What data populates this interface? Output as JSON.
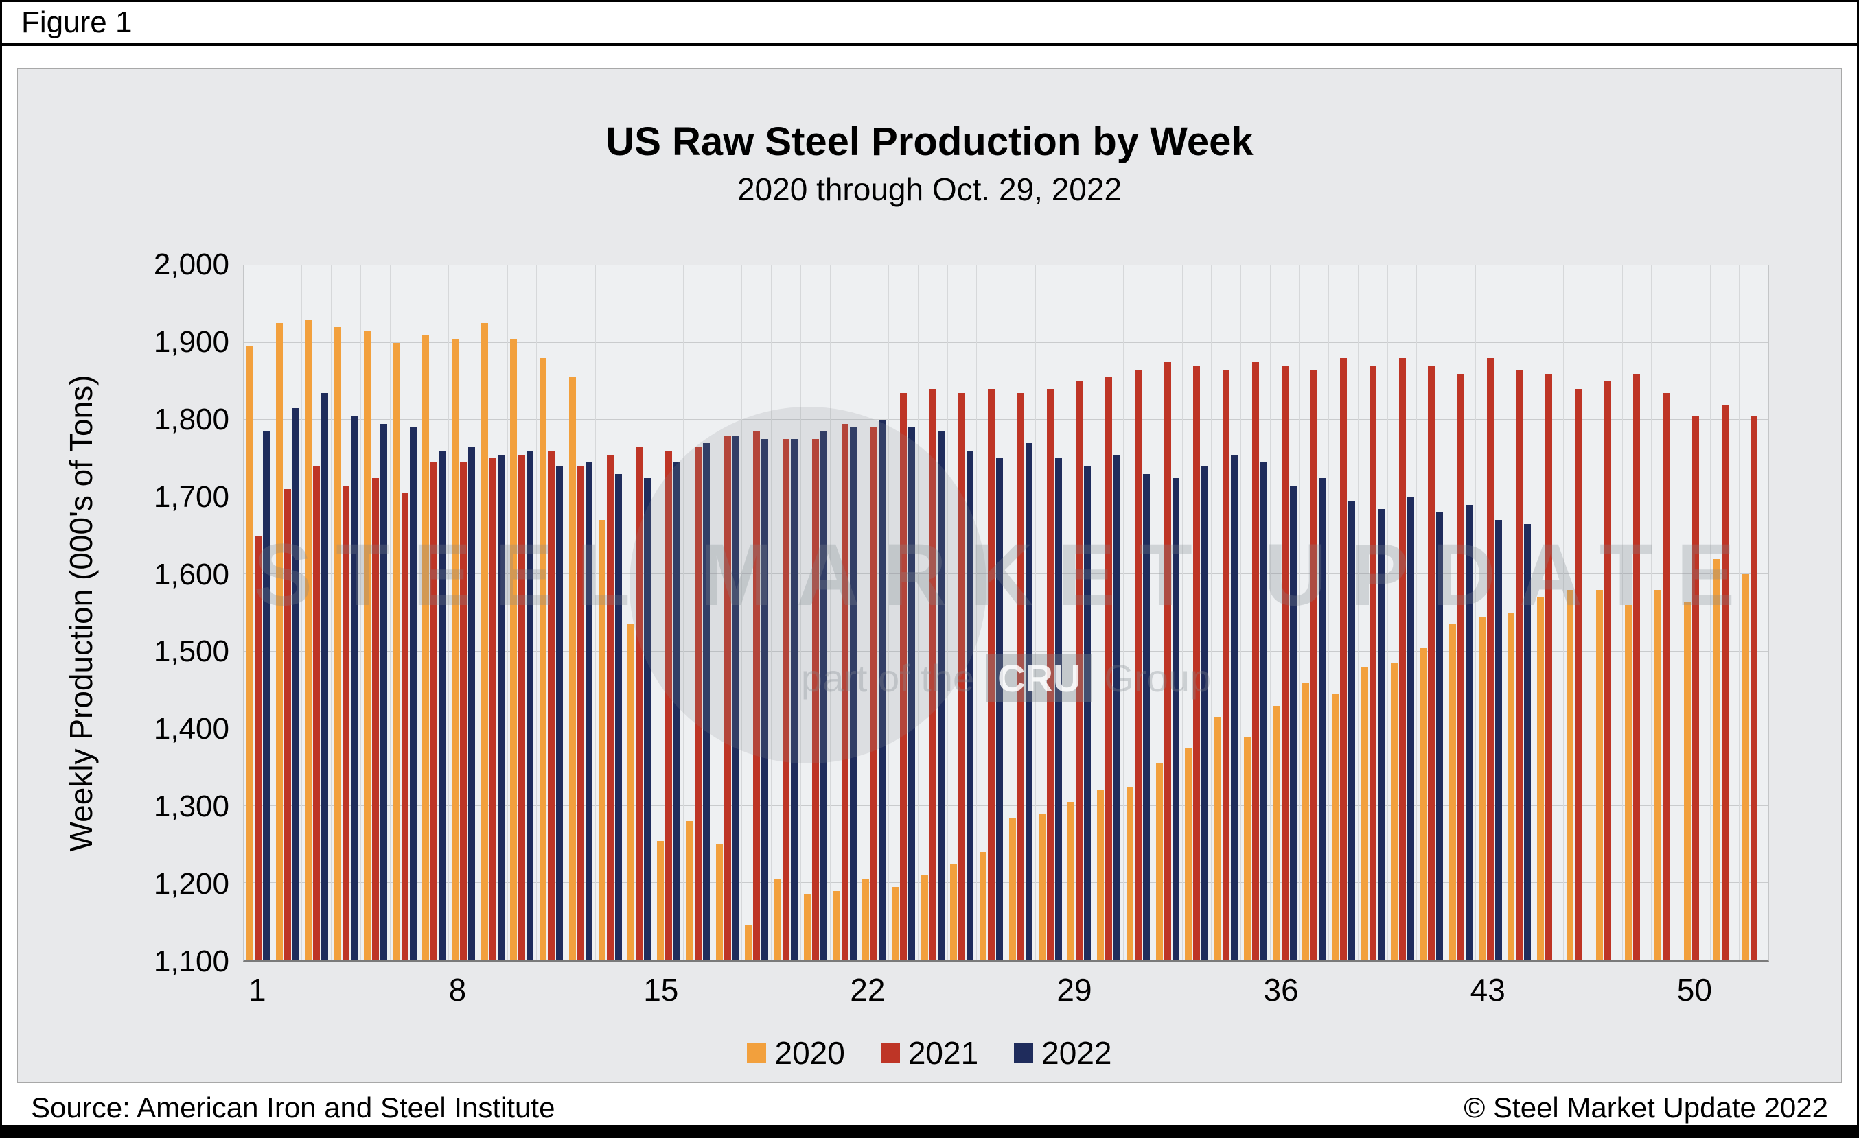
{
  "figure_label": "Figure 1",
  "title": "US Raw Steel Production by Week",
  "subtitle": "2020 through Oct. 29, 2022",
  "ylabel": "Weekly Production (000's of Tons)",
  "source": "Source: American Iron and Steel Institute",
  "copyright": "© Steel Market Update 2022",
  "watermark": {
    "line1": "STEEL MARKET UPDATE",
    "line2_prefix": "part of the",
    "line2_box": "CRU",
    "line2_suffix": "Group"
  },
  "colors": {
    "series_2020": "#F2A03D",
    "series_2021": "#BE3526",
    "series_2022": "#1F2C5C",
    "panel_background": "#E8E9EB",
    "plot_background": "#EEF0F2"
  },
  "chart_data": {
    "type": "bar",
    "title": "US Raw Steel Production by Week",
    "subtitle": "2020 through Oct. 29, 2022",
    "xlabel": "",
    "ylabel": "Weekly Production (000's of Tons)",
    "ylim": [
      1100,
      2000
    ],
    "yticks": [
      1100,
      1200,
      1300,
      1400,
      1500,
      1600,
      1700,
      1800,
      1900,
      2000
    ],
    "x_label_ticks": [
      1,
      8,
      15,
      22,
      29,
      36,
      43,
      50
    ],
    "grid": true,
    "legend_position": "bottom",
    "weeks": [
      1,
      2,
      3,
      4,
      5,
      6,
      7,
      8,
      9,
      10,
      11,
      12,
      13,
      14,
      15,
      16,
      17,
      18,
      19,
      20,
      21,
      22,
      23,
      24,
      25,
      26,
      27,
      28,
      29,
      30,
      31,
      32,
      33,
      34,
      35,
      36,
      37,
      38,
      39,
      40,
      41,
      42,
      43,
      44,
      45,
      46,
      47,
      48,
      49,
      50,
      51,
      52
    ],
    "series": [
      {
        "name": "2020",
        "color": "#F2A03D",
        "values": [
          1895,
          1925,
          1930,
          1920,
          1915,
          1900,
          1910,
          1905,
          1925,
          1905,
          1880,
          1855,
          1670,
          1535,
          1255,
          1280,
          1250,
          1145,
          1205,
          1185,
          1190,
          1205,
          1195,
          1210,
          1225,
          1240,
          1285,
          1290,
          1305,
          1320,
          1325,
          1355,
          1375,
          1415,
          1390,
          1430,
          1460,
          1445,
          1480,
          1485,
          1505,
          1535,
          1545,
          1550,
          1570,
          1580,
          1580,
          1560,
          1580,
          1565,
          1620,
          1600
        ]
      },
      {
        "name": "2021",
        "color": "#BE3526",
        "values": [
          1650,
          1710,
          1740,
          1715,
          1725,
          1705,
          1745,
          1745,
          1750,
          1755,
          1760,
          1740,
          1755,
          1765,
          1760,
          1765,
          1780,
          1785,
          1775,
          1775,
          1795,
          1790,
          1835,
          1840,
          1835,
          1840,
          1835,
          1840,
          1850,
          1855,
          1865,
          1875,
          1870,
          1865,
          1875,
          1870,
          1865,
          1880,
          1870,
          1880,
          1870,
          1860,
          1880,
          1865,
          1860,
          1840,
          1850,
          1860,
          1835,
          1805,
          1820,
          1805
        ]
      },
      {
        "name": "2022",
        "color": "#1F2C5C",
        "values": [
          1785,
          1815,
          1835,
          1805,
          1795,
          1790,
          1760,
          1765,
          1755,
          1760,
          1740,
          1745,
          1730,
          1725,
          1745,
          1770,
          1780,
          1775,
          1775,
          1785,
          1790,
          1800,
          1790,
          1785,
          1760,
          1750,
          1770,
          1750,
          1740,
          1755,
          1730,
          1725,
          1740,
          1755,
          1745,
          1715,
          1725,
          1695,
          1685,
          1700,
          1680,
          1690,
          1670,
          1665,
          null,
          null,
          null,
          null,
          null,
          null,
          null,
          null
        ]
      }
    ]
  }
}
